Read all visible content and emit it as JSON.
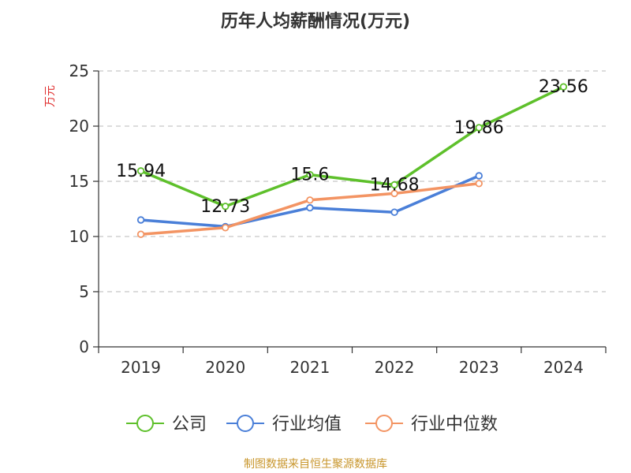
{
  "chart_data": {
    "type": "line",
    "title": "历年人均薪酬情况(万元)",
    "ylabel": "万元",
    "xlabel": "",
    "categories": [
      "2019",
      "2020",
      "2021",
      "2022",
      "2023",
      "2024"
    ],
    "ylim": [
      0,
      25
    ],
    "yticks": [
      0,
      5,
      10,
      15,
      20,
      25
    ],
    "grid": true,
    "legend_position": "bottom",
    "series": [
      {
        "name": "公司",
        "color": "#5ec02b",
        "values": [
          15.94,
          12.73,
          15.6,
          14.68,
          19.86,
          23.56
        ],
        "labels": [
          "15.94",
          "12.73",
          "15.6",
          "14.68",
          "19.86",
          "23.56"
        ]
      },
      {
        "name": "行业均值",
        "color": "#4a7fd8",
        "values": [
          11.5,
          10.9,
          12.6,
          12.2,
          15.5,
          null
        ]
      },
      {
        "name": "行业中位数",
        "color": "#f39463",
        "values": [
          10.2,
          10.8,
          13.3,
          13.9,
          14.8,
          null
        ]
      }
    ]
  },
  "footer": {
    "source": "制图数据来自恒生聚源数据库",
    "source_color": "#c8962c"
  },
  "colors": {
    "axis": "#333333",
    "grid": "#c8c8c8",
    "ylabel": "#e03030",
    "title": "#333333"
  }
}
